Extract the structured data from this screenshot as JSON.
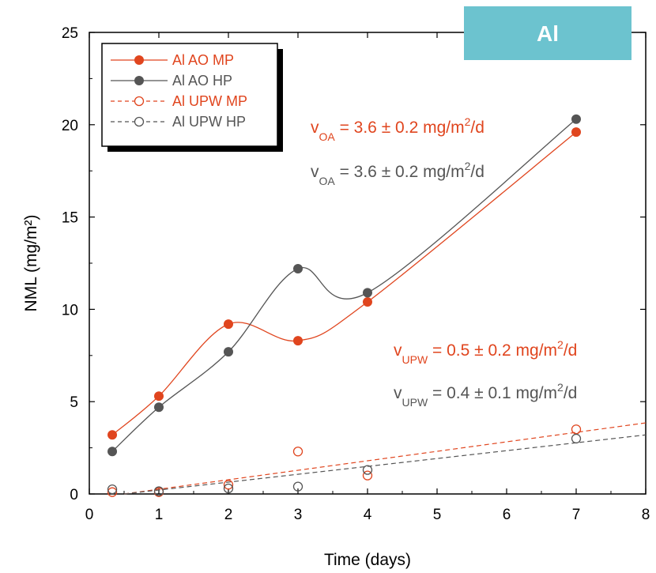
{
  "badge": {
    "label": "Al",
    "color": "#6cc3cf"
  },
  "colors": {
    "mp": "#e0451e",
    "hp": "#555555"
  },
  "chart_data": {
    "type": "line",
    "xlabel": "Time (days)",
    "ylabel": "NML (mg/m²)",
    "xlim": [
      0,
      8
    ],
    "ylim": [
      0,
      25
    ],
    "xticks": [
      "0",
      "1",
      "2",
      "3",
      "4",
      "5",
      "6",
      "7",
      "8"
    ],
    "yticks": [
      "0",
      "5",
      "10",
      "15",
      "20",
      "25"
    ],
    "grid": false,
    "legend_position": "top-left",
    "series": [
      {
        "name": "Al AO MP",
        "color": "#e0451e",
        "marker": "filled-circle",
        "line": "solid",
        "x": [
          0.33,
          1,
          2,
          3,
          4,
          7
        ],
        "y": [
          3.2,
          5.3,
          9.2,
          8.3,
          10.4,
          19.6
        ]
      },
      {
        "name": "Al AO HP",
        "color": "#555555",
        "marker": "filled-circle",
        "line": "solid",
        "x": [
          0.33,
          1,
          2,
          3,
          4,
          7
        ],
        "y": [
          2.3,
          4.7,
          7.7,
          12.2,
          10.9,
          20.3
        ]
      },
      {
        "name": "Al UPW MP",
        "color": "#e0451e",
        "marker": "open-circle",
        "line": "dashed",
        "x": [
          0.33,
          1,
          2,
          3,
          4,
          7
        ],
        "y": [
          0.1,
          0.1,
          0.5,
          2.3,
          1.0,
          3.5
        ],
        "fit": {
          "x": [
            0.5,
            8
          ],
          "y": [
            0,
            3.85
          ]
        }
      },
      {
        "name": "Al UPW HP",
        "color": "#555555",
        "marker": "open-circle",
        "line": "dashed",
        "x": [
          0.33,
          1,
          2,
          3,
          4,
          7
        ],
        "y": [
          0.25,
          0.15,
          0.3,
          0.4,
          1.3,
          3.0
        ],
        "fit": {
          "x": [
            0.5,
            8
          ],
          "y": [
            0,
            3.2
          ]
        }
      }
    ],
    "annotations": [
      {
        "main": "v",
        "sub": "OA",
        "rest": " = 3.6 ± 0.2 mg/m",
        "sup": "2",
        "tail": "/d",
        "color": "#e0451e"
      },
      {
        "main": "v",
        "sub": "OA",
        "rest": " = 3.6 ± 0.2 mg/m",
        "sup": "2",
        "tail": "/d",
        "color": "#555555"
      },
      {
        "main": "v",
        "sub": "UPW",
        "rest": " = 0.5 ± 0.2 mg/m",
        "sup": "2",
        "tail": "/d",
        "color": "#e0451e"
      },
      {
        "main": "v",
        "sub": "UPW",
        "rest": " = 0.4 ± 0.1 mg/m",
        "sup": "2",
        "tail": "/d",
        "color": "#555555"
      }
    ]
  }
}
